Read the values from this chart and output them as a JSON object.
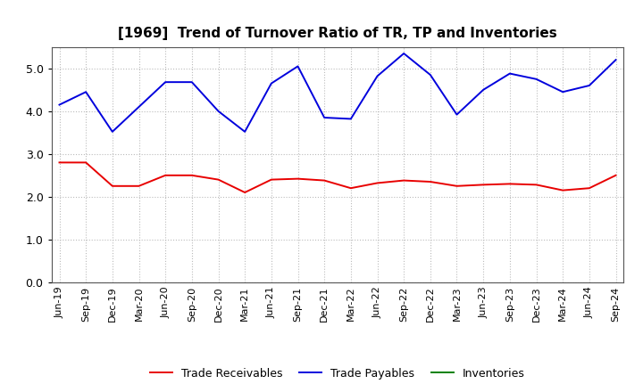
{
  "title": "[1969]  Trend of Turnover Ratio of TR, TP and Inventories",
  "x_labels": [
    "Jun-19",
    "Sep-19",
    "Dec-19",
    "Mar-20",
    "Jun-20",
    "Sep-20",
    "Dec-20",
    "Mar-21",
    "Jun-21",
    "Sep-21",
    "Dec-21",
    "Mar-22",
    "Jun-22",
    "Sep-22",
    "Dec-22",
    "Mar-23",
    "Jun-23",
    "Sep-23",
    "Dec-23",
    "Mar-24",
    "Jun-24",
    "Sep-24"
  ],
  "trade_receivables": [
    2.8,
    2.8,
    2.25,
    2.25,
    2.5,
    2.5,
    2.4,
    2.1,
    2.4,
    2.42,
    2.38,
    2.2,
    2.32,
    2.38,
    2.35,
    2.25,
    2.28,
    2.3,
    2.28,
    2.15,
    2.2,
    2.5
  ],
  "trade_payables": [
    4.15,
    4.45,
    3.52,
    4.1,
    4.68,
    4.68,
    4.0,
    3.52,
    4.65,
    5.05,
    3.85,
    3.82,
    4.82,
    5.35,
    4.85,
    3.92,
    4.5,
    4.88,
    4.75,
    4.45,
    4.6,
    5.2
  ],
  "inventories": [
    null,
    null,
    null,
    null,
    null,
    null,
    null,
    null,
    null,
    null,
    null,
    null,
    null,
    null,
    null,
    null,
    null,
    null,
    null,
    null,
    null,
    null
  ],
  "tr_color": "#e80000",
  "tp_color": "#0000dd",
  "inv_color": "#008000",
  "ylim": [
    0.0,
    5.5
  ],
  "yticks": [
    0.0,
    1.0,
    2.0,
    3.0,
    4.0,
    5.0
  ],
  "legend_labels": [
    "Trade Receivables",
    "Trade Payables",
    "Inventories"
  ],
  "background_color": "#ffffff",
  "grid_color": "#bbbbbb",
  "title_fontsize": 11,
  "tick_fontsize": 8
}
